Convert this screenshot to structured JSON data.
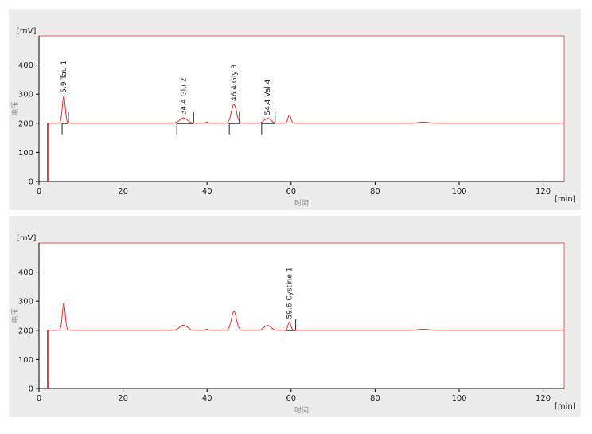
{
  "colors": {
    "trace": "#e03030",
    "frame": "#e06060",
    "axis": "#000000",
    "panel_bg": "#ececec",
    "plot_bg": "#ffffff"
  },
  "chart_data": [
    {
      "type": "line",
      "title": "",
      "xlabel": "时间",
      "ylabel": "电压",
      "x_unit": "[min]",
      "y_unit": "[mV]",
      "xlim": [
        0,
        125
      ],
      "ylim": [
        0,
        500
      ],
      "x_ticks": [
        "0",
        "20",
        "40",
        "60",
        "80",
        "100",
        "120"
      ],
      "y_ticks": [
        "0",
        "100",
        "200",
        "300",
        "400"
      ],
      "grid": false,
      "baseline": 200,
      "dip": {
        "x": 2,
        "y": 0
      },
      "peaks": [
        {
          "rt": 5.9,
          "height": 93,
          "width": 0.35
        },
        {
          "rt": 34.4,
          "height": 18,
          "width": 0.9
        },
        {
          "rt": 40.0,
          "height": 4,
          "width": 0.3
        },
        {
          "rt": 46.4,
          "height": 65,
          "width": 0.6
        },
        {
          "rt": 54.4,
          "height": 17,
          "width": 0.8
        },
        {
          "rt": 59.6,
          "height": 28,
          "width": 0.35
        },
        {
          "rt": 91.5,
          "height": 4,
          "width": 1.2
        }
      ],
      "annotations": [
        {
          "text": "5.9 Tau   1",
          "rt": 5.9,
          "start": 5.5,
          "end": 7.0
        },
        {
          "text": "34.4 Glu   2",
          "rt": 34.4,
          "start": 32.8,
          "end": 36.8
        },
        {
          "text": "46.4 Gly   3",
          "rt": 46.4,
          "start": 45.3,
          "end": 47.7
        },
        {
          "text": "54.4 Val   4",
          "rt": 54.4,
          "start": 53.0,
          "end": 56.2
        }
      ]
    },
    {
      "type": "line",
      "title": "",
      "xlabel": "时间",
      "ylabel": "电压",
      "x_unit": "[min]",
      "y_unit": "[mV]",
      "xlim": [
        0,
        125
      ],
      "ylim": [
        0,
        500
      ],
      "x_ticks": [
        "0",
        "20",
        "40",
        "60",
        "80",
        "100",
        "120"
      ],
      "y_ticks": [
        "0",
        "100",
        "200",
        "300",
        "400"
      ],
      "grid": false,
      "baseline": 200,
      "dip": {
        "x": 2,
        "y": 0
      },
      "peaks": [
        {
          "rt": 5.9,
          "height": 93,
          "width": 0.35
        },
        {
          "rt": 34.4,
          "height": 18,
          "width": 0.9
        },
        {
          "rt": 40.0,
          "height": 4,
          "width": 0.3
        },
        {
          "rt": 46.4,
          "height": 65,
          "width": 0.6
        },
        {
          "rt": 54.4,
          "height": 17,
          "width": 0.8
        },
        {
          "rt": 59.6,
          "height": 28,
          "width": 0.35
        },
        {
          "rt": 91.5,
          "height": 4,
          "width": 1.2
        }
      ],
      "annotations": [
        {
          "text": "59.6 Cystine   1",
          "rt": 59.6,
          "start": 58.8,
          "end": 61.1
        }
      ]
    }
  ]
}
